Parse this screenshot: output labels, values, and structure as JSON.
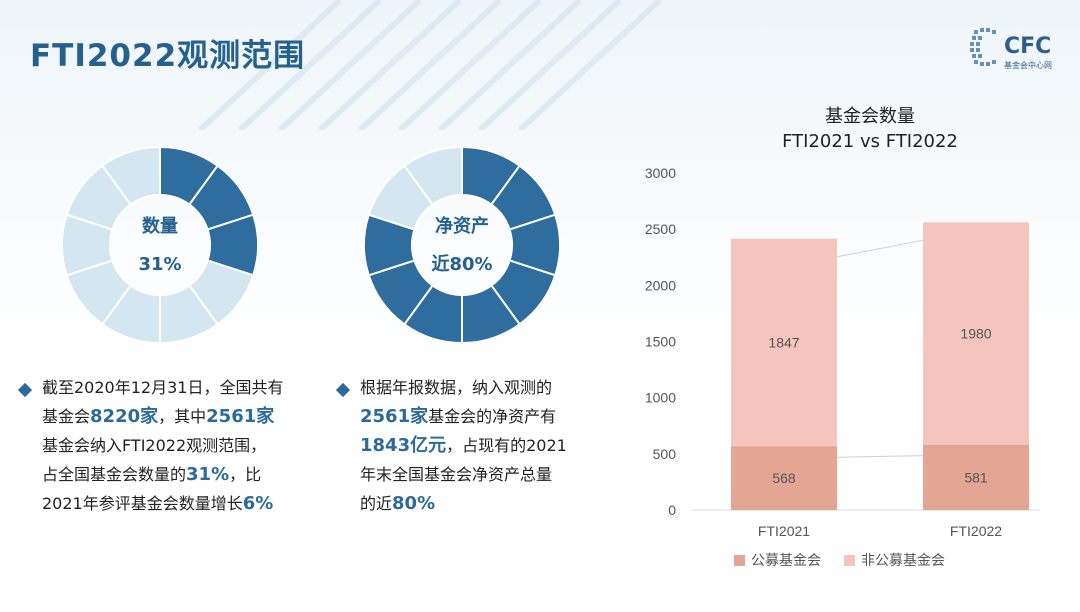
{
  "title": "FTI2022观测范围",
  "logo": {
    "text": "CFC",
    "sub": "基金会中心网"
  },
  "donut_left": {
    "label_line1": "数量",
    "label_line2": "31%",
    "percent": 31,
    "segments": 10
  },
  "donut_mid": {
    "label_line1": "净资产",
    "label_line2": "近80%",
    "percent": 80,
    "segments": 10
  },
  "para_left": {
    "l1": "截至2020年12月31日，全国共有",
    "l2a": "基金会",
    "l2b": "8220家",
    "l2c": "，其中",
    "l2d": "2561家",
    "l3": "基金会纳入FTI2022观测范围，",
    "l4a": "占全国基金会数量的",
    "l4b": "31%",
    "l4c": "，比",
    "l5a": "2021年参评基金会数量增长",
    "l5b": "6%"
  },
  "para_mid": {
    "l1": "根据年报数据，纳入观测的",
    "l2a": "2561家",
    "l2b": "基金会的净资产有",
    "l3a": "1843亿元",
    "l3b": "，占现有的2021",
    "l4": "年末全国基金会净资产总量",
    "l5a": "的近",
    "l5b": "80%"
  },
  "colors": {
    "title": "#25608f",
    "donut_dark": "#2e6d9e",
    "donut_light": "#d4e6ef",
    "public": "#e2a693",
    "nonpublic": "#f4c4bd"
  },
  "chart_data": {
    "type": "bar",
    "stacked": true,
    "title_line1": "基金会数量",
    "title_line2": "FTI2021 vs FTI2022",
    "categories": [
      "FTI2021",
      "FTI2022"
    ],
    "series": [
      {
        "name": "公募基金会",
        "values": [
          568,
          581
        ]
      },
      {
        "name": "非公募基金会",
        "values": [
          1847,
          1980
        ]
      }
    ],
    "ylim": [
      0,
      3000
    ],
    "yticks": [
      "0",
      "500",
      "1000",
      "1500",
      "2000",
      "2500",
      "3000"
    ],
    "ytick_values": [
      0,
      500,
      1000,
      1500,
      2000,
      2500,
      3000
    ],
    "legend": "bottom"
  }
}
